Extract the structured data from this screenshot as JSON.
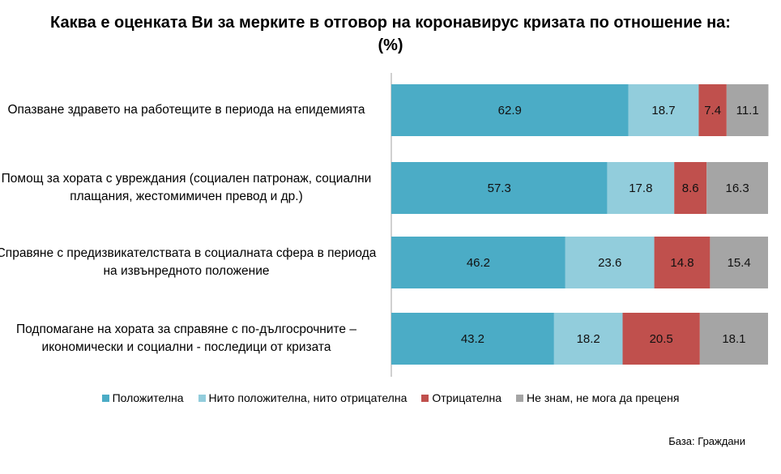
{
  "chart_data": {
    "type": "bar",
    "orientation": "horizontal",
    "stacked": true,
    "title": "Каква е оценката Ви за мерките в отговор на коронавирус кризата по отношение на: (%)",
    "categories": [
      "Опазване здравето на работещите в периода на епидемията",
      "Помощ за хората с увреждания (социален патронаж, социални плащания, жестомимичен превод и др.)",
      "Справяне с предизвикателствата в социалната сфера в периода на извънредното положение",
      "Подпомагане на хората за справяне с по-дългосрочните – икономически и социални - последици от кризата"
    ],
    "series": [
      {
        "name": "Положителна",
        "color": "#4bacc6",
        "values": [
          62.9,
          57.3,
          46.2,
          43.2
        ]
      },
      {
        "name": "Нито положителна, нито отрицателна",
        "color": "#92cddc",
        "values": [
          18.7,
          17.8,
          23.6,
          18.2
        ]
      },
      {
        "name": "Отрицателна",
        "color": "#c0504d",
        "values": [
          7.4,
          8.6,
          14.8,
          20.5
        ]
      },
      {
        "name": "Не знам, не мога да преценя",
        "color": "#a5a5a5",
        "values": [
          11.1,
          16.3,
          15.4,
          18.1
        ]
      }
    ],
    "xlim": [
      0,
      100
    ],
    "legend_position": "bottom",
    "grid": false
  },
  "source_note": "База: Граждани"
}
